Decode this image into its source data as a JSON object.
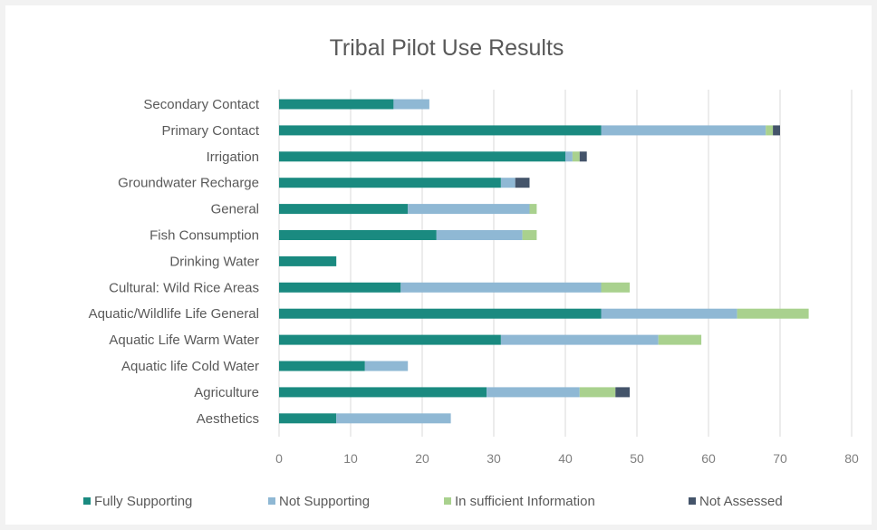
{
  "chart_data": {
    "type": "bar",
    "orientation": "horizontal",
    "stacked": true,
    "title": "Tribal Pilot Use Results",
    "categories": [
      "Secondary Contact",
      "Primary Contact",
      "Irrigation",
      "Groundwater Recharge",
      "General",
      "Fish Consumption",
      "Drinking Water",
      "Cultural: Wild Rice Areas",
      "Aquatic/Wildlife Life General",
      "Aquatic Life Warm Water",
      "Aquatic life Cold Water",
      "Agriculture",
      "Aesthetics"
    ],
    "series": [
      {
        "name": "Fully Supporting",
        "color": "#1a8a80",
        "values": [
          16,
          45,
          40,
          31,
          18,
          22,
          8,
          17,
          45,
          31,
          12,
          29,
          8
        ]
      },
      {
        "name": "Not Supporting",
        "color": "#8fb8d4",
        "values": [
          5,
          23,
          1,
          2,
          17,
          12,
          0,
          28,
          19,
          22,
          6,
          13,
          16
        ]
      },
      {
        "name": "In sufficient Information",
        "color": "#a9d18e",
        "values": [
          0,
          1,
          1,
          0,
          1,
          2,
          0,
          4,
          10,
          6,
          0,
          5,
          0
        ]
      },
      {
        "name": "Not Assessed",
        "color": "#44546a",
        "values": [
          0,
          1,
          1,
          2,
          0,
          0,
          0,
          0,
          0,
          0,
          0,
          2,
          0
        ]
      }
    ],
    "xlim": [
      0,
      80
    ],
    "xticks": [
      "0",
      "10",
      "20",
      "30",
      "40",
      "50",
      "60",
      "70",
      "80"
    ],
    "grid": true,
    "legend_position": "bottom"
  }
}
